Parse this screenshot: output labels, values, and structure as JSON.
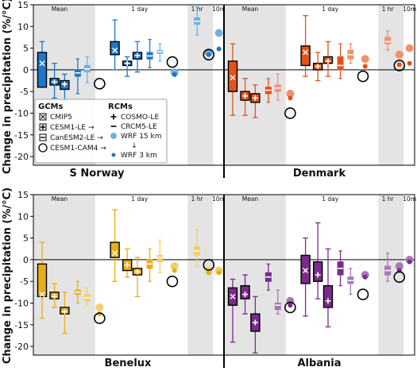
{
  "chart_data": {
    "type": "box",
    "ylabel": "Change in precipitation (%/°C)",
    "ylim": [
      -22,
      15
    ],
    "yticks": [
      15,
      10,
      5,
      0,
      -5,
      -10,
      -15,
      -20
    ],
    "groups": [
      "Mean",
      "1 day",
      "1 hr",
      "10m"
    ],
    "grid": false,
    "legend": {
      "placement": "lower-left of top-left panel",
      "gcm_title": "GCMs",
      "rcm_title": "RCMs",
      "gcms": [
        {
          "label": "CMIP5",
          "marker": "x-box"
        },
        {
          "label": "CESM1-LE →",
          "marker": "plus-box"
        },
        {
          "label": "CanESM2-LE →",
          "marker": "dash-box"
        },
        {
          "label": "CESM1-CAM4 →",
          "marker": "open-circle"
        }
      ],
      "rcms": [
        {
          "label": "COSMO-LE",
          "marker": "plus"
        },
        {
          "label": "CRCM5-LE",
          "marker": "dash"
        },
        {
          "label": "WRF 15 km",
          "marker": "large-dot"
        },
        {
          "label": "↓",
          "marker": "none"
        },
        {
          "label": "WRF 3 km",
          "marker": "small-dot"
        }
      ]
    },
    "panels": [
      {
        "region": "S Norway",
        "color_main": "#1f77c8",
        "color_light": "#6fb2e0",
        "boxes": [
          {
            "x": 0.6,
            "q1": -4,
            "median": 1.5,
            "q3": 4,
            "low": -4,
            "high": 6.5,
            "marker": "x",
            "style": "dark"
          },
          {
            "x": 1.45,
            "q1": -3.5,
            "median": -2.8,
            "q3": -2,
            "low": -6.5,
            "high": 1.5,
            "marker": "plus",
            "style": "dark"
          },
          {
            "x": 2.15,
            "q1": -4.5,
            "median": -3.3,
            "q3": -2.5,
            "low": -7,
            "high": -1,
            "marker": "plus",
            "style": "dark"
          },
          {
            "x": 3.05,
            "q1": -1.5,
            "median": -0.7,
            "q3": 0,
            "low": -5.5,
            "high": 2.5,
            "marker": "dash",
            "style": "mid"
          },
          {
            "x": 3.7,
            "q1": -0.5,
            "median": 0.2,
            "q3": 1,
            "low": -3,
            "high": 3,
            "marker": "dash",
            "style": "light"
          },
          {
            "x": 5.6,
            "q1": 3.5,
            "median": 4.5,
            "q3": 6.5,
            "low": 0,
            "high": 11.5,
            "marker": "x",
            "style": "dark"
          },
          {
            "x": 6.45,
            "q1": 1,
            "median": 1.5,
            "q3": 2,
            "low": -1.5,
            "high": 3,
            "marker": "plus",
            "style": "dark"
          },
          {
            "x": 7.15,
            "q1": 2.5,
            "median": 3.3,
            "q3": 4,
            "low": -0.5,
            "high": 6.5,
            "marker": "plus",
            "style": "dark"
          },
          {
            "x": 8.0,
            "q1": 2.5,
            "median": 3.2,
            "q3": 4,
            "low": 0.5,
            "high": 7,
            "marker": "dash",
            "style": "mid"
          },
          {
            "x": 8.7,
            "q1": 3.8,
            "median": 4.2,
            "q3": 4.5,
            "low": 2,
            "high": 6,
            "marker": "dash",
            "style": "light"
          },
          {
            "x": 11.25,
            "q1": 10.5,
            "median": 11.2,
            "q3": 12,
            "low": 8,
            "high": 14.5,
            "marker": "dash",
            "style": "light"
          }
        ],
        "circles": [
          {
            "x": 4.55,
            "y": -3.2
          },
          {
            "x": 9.55,
            "y": 1.8
          },
          {
            "x": 12.05,
            "y": 3.5
          }
        ],
        "dots": [
          {
            "x": 9.7,
            "y": -0.6,
            "size": "large"
          },
          {
            "x": 9.7,
            "y": -1.1,
            "size": "small"
          },
          {
            "x": 12.05,
            "y": 4,
            "size": "large"
          },
          {
            "x": 12.05,
            "y": 3.5,
            "size": "small"
          },
          {
            "x": 12.75,
            "y": 8.5,
            "size": "large"
          },
          {
            "x": 12.75,
            "y": 4.8,
            "size": "small"
          }
        ]
      },
      {
        "region": "Denmark",
        "color_main": "#e0531a",
        "color_light": "#f0936a",
        "boxes": [
          {
            "x": 0.6,
            "q1": -5,
            "median": -1.8,
            "q3": 2,
            "low": -10.5,
            "high": 6,
            "marker": "x",
            "style": "dark"
          },
          {
            "x": 1.45,
            "q1": -7,
            "median": -6,
            "q3": -5,
            "low": -10.5,
            "high": -2,
            "marker": "plus",
            "style": "dark"
          },
          {
            "x": 2.15,
            "q1": -7.5,
            "median": -6.5,
            "q3": -5.5,
            "low": -11,
            "high": -3.5,
            "marker": "plus",
            "style": "dark"
          },
          {
            "x": 3.05,
            "q1": -5.5,
            "median": -4.7,
            "q3": -4,
            "low": -7.5,
            "high": -2,
            "marker": "dash",
            "style": "mid"
          },
          {
            "x": 3.7,
            "q1": -5,
            "median": -4.2,
            "q3": -3.5,
            "low": -7,
            "high": -1,
            "marker": "dash",
            "style": "light"
          },
          {
            "x": 5.6,
            "q1": 1,
            "median": 4,
            "q3": 5.5,
            "low": -1.5,
            "high": 12.5,
            "marker": "x",
            "style": "dark"
          },
          {
            "x": 6.45,
            "q1": 0,
            "median": 0.8,
            "q3": 1.5,
            "low": -2.5,
            "high": 4,
            "marker": "plus",
            "style": "dark"
          },
          {
            "x": 7.15,
            "q1": 1.5,
            "median": 2,
            "q3": 3,
            "low": -1.5,
            "high": 6.5,
            "marker": "plus",
            "style": "dark"
          },
          {
            "x": 8.0,
            "q1": 0,
            "median": 1,
            "q3": 3,
            "low": -2,
            "high": 6,
            "marker": "dash",
            "style": "mid"
          },
          {
            "x": 8.7,
            "q1": 2.5,
            "median": 3.5,
            "q3": 4.5,
            "low": 1.5,
            "high": 6,
            "marker": "dash",
            "style": "light"
          },
          {
            "x": 11.25,
            "q1": 6,
            "median": 6.5,
            "q3": 7.5,
            "low": 4.5,
            "high": 9,
            "marker": "dash",
            "style": "light"
          }
        ],
        "circles": [
          {
            "x": 4.55,
            "y": -10
          },
          {
            "x": 9.55,
            "y": -1.5
          },
          {
            "x": 12.05,
            "y": 1
          }
        ],
        "dots": [
          {
            "x": 4.55,
            "y": -5.5,
            "size": "large"
          },
          {
            "x": 4.55,
            "y": -6.5,
            "size": "small"
          },
          {
            "x": 9.7,
            "y": 2.5,
            "size": "large"
          },
          {
            "x": 9.7,
            "y": 0.8,
            "size": "small"
          },
          {
            "x": 12.05,
            "y": 3.5,
            "size": "large"
          },
          {
            "x": 12.05,
            "y": 1.2,
            "size": "small"
          },
          {
            "x": 12.75,
            "y": 5,
            "size": "large"
          },
          {
            "x": 12.75,
            "y": 1.5,
            "size": "small"
          }
        ]
      },
      {
        "region": "Benelux",
        "color_main": "#e8ae18",
        "color_light": "#f2cf6a",
        "boxes": [
          {
            "x": 0.6,
            "q1": -8.5,
            "median": -8,
            "q3": -1,
            "low": -13.5,
            "high": 4,
            "marker": "x",
            "style": "dark"
          },
          {
            "x": 1.45,
            "q1": -9,
            "median": -8.5,
            "q3": -7.5,
            "low": -11,
            "high": -5.5,
            "marker": "plus",
            "style": "dark"
          },
          {
            "x": 2.15,
            "q1": -12.5,
            "median": -12,
            "q3": -11,
            "low": -17,
            "high": -7.5,
            "marker": "plus",
            "style": "dark"
          },
          {
            "x": 3.05,
            "q1": -8,
            "median": -7.5,
            "q3": -7,
            "low": -10,
            "high": -5,
            "marker": "dash",
            "style": "mid"
          },
          {
            "x": 3.7,
            "q1": -9.5,
            "median": -8.8,
            "q3": -8,
            "low": -10.5,
            "high": -6.5,
            "marker": "dash",
            "style": "light"
          },
          {
            "x": 5.6,
            "q1": 0.5,
            "median": 1.5,
            "q3": 4,
            "low": -5,
            "high": 11.5,
            "marker": "x",
            "style": "dark"
          },
          {
            "x": 6.45,
            "q1": -2.5,
            "median": -1.2,
            "q3": 0,
            "low": -4,
            "high": 2.5,
            "marker": "plus",
            "style": "dark"
          },
          {
            "x": 7.15,
            "q1": -3.5,
            "median": -2.8,
            "q3": -2,
            "low": -8.5,
            "high": 0.5,
            "marker": "plus",
            "style": "dark"
          },
          {
            "x": 8.0,
            "q1": -2,
            "median": -1,
            "q3": 0,
            "low": -5,
            "high": 2.5,
            "marker": "dash",
            "style": "mid"
          },
          {
            "x": 8.7,
            "q1": -0.5,
            "median": 0.5,
            "q3": 1,
            "low": -3,
            "high": 4.5,
            "marker": "dash",
            "style": "light"
          },
          {
            "x": 11.25,
            "q1": 1,
            "median": 2,
            "q3": 3,
            "low": -1.5,
            "high": 7,
            "marker": "dash",
            "style": "light"
          }
        ],
        "circles": [
          {
            "x": 4.55,
            "y": -13.5
          },
          {
            "x": 9.55,
            "y": -5
          },
          {
            "x": 12.05,
            "y": -1.2
          }
        ],
        "dots": [
          {
            "x": 4.55,
            "y": -11,
            "size": "large"
          },
          {
            "x": 4.55,
            "y": -12.5,
            "size": "small"
          },
          {
            "x": 9.7,
            "y": -1.5,
            "size": "large"
          },
          {
            "x": 9.7,
            "y": -2.5,
            "size": "small"
          },
          {
            "x": 12.05,
            "y": -2.5,
            "size": "large"
          },
          {
            "x": 12.05,
            "y": -3,
            "size": "small"
          },
          {
            "x": 12.75,
            "y": -2.5,
            "size": "large"
          },
          {
            "x": 12.75,
            "y": -3,
            "size": "small"
          }
        ]
      },
      {
        "region": "Albania",
        "color_main": "#7a2a8c",
        "color_light": "#a877b8",
        "boxes": [
          {
            "x": 0.6,
            "q1": -10.5,
            "median": -8.5,
            "q3": -6.5,
            "low": -19,
            "high": -4.5,
            "marker": "x",
            "style": "dark"
          },
          {
            "x": 1.45,
            "q1": -9,
            "median": -8,
            "q3": -6,
            "low": -12.5,
            "high": -3.5,
            "marker": "plus",
            "style": "dark"
          },
          {
            "x": 2.15,
            "q1": -16.5,
            "median": -14.5,
            "q3": -12.5,
            "low": -21.5,
            "high": -8.5,
            "marker": "plus",
            "style": "dark"
          },
          {
            "x": 3.05,
            "q1": -5,
            "median": -4,
            "q3": -3,
            "low": -7,
            "high": -1,
            "marker": "dash",
            "style": "mid"
          },
          {
            "x": 3.7,
            "q1": -11.5,
            "median": -10.5,
            "q3": -10,
            "low": -12.5,
            "high": -7,
            "marker": "dash",
            "style": "light"
          },
          {
            "x": 5.6,
            "q1": -5.5,
            "median": -2.5,
            "q3": 1,
            "low": -13,
            "high": 5,
            "marker": "x",
            "style": "dark"
          },
          {
            "x": 6.45,
            "q1": -5,
            "median": -3.5,
            "q3": -0.5,
            "low": -9,
            "high": 8.5,
            "marker": "plus",
            "style": "dark"
          },
          {
            "x": 7.15,
            "q1": -11,
            "median": -9.5,
            "q3": -6,
            "low": -15.5,
            "high": 2.5,
            "marker": "plus",
            "style": "dark"
          },
          {
            "x": 8.0,
            "q1": -3.5,
            "median": -2,
            "q3": -0.5,
            "low": -6,
            "high": 2,
            "marker": "dash",
            "style": "mid"
          },
          {
            "x": 8.7,
            "q1": -5.5,
            "median": -4.8,
            "q3": -4,
            "low": -8,
            "high": -2,
            "marker": "dash",
            "style": "light"
          },
          {
            "x": 11.25,
            "q1": -3.5,
            "median": -2.5,
            "q3": -1.5,
            "low": -5,
            "high": 1.5,
            "marker": "dash",
            "style": "light"
          }
        ],
        "circles": [
          {
            "x": 4.55,
            "y": -11
          },
          {
            "x": 9.55,
            "y": -8
          },
          {
            "x": 12.05,
            "y": -4
          }
        ],
        "dots": [
          {
            "x": 4.55,
            "y": -9.5,
            "size": "large"
          },
          {
            "x": 4.55,
            "y": -10.5,
            "size": "small"
          },
          {
            "x": 9.7,
            "y": -3.5,
            "size": "large"
          },
          {
            "x": 9.7,
            "y": -4,
            "size": "small"
          },
          {
            "x": 12.05,
            "y": -1.5,
            "size": "large"
          },
          {
            "x": 12.05,
            "y": -2.5,
            "size": "small"
          },
          {
            "x": 12.75,
            "y": 0,
            "size": "large"
          },
          {
            "x": 12.75,
            "y": -0.5,
            "size": "small"
          }
        ]
      }
    ]
  }
}
